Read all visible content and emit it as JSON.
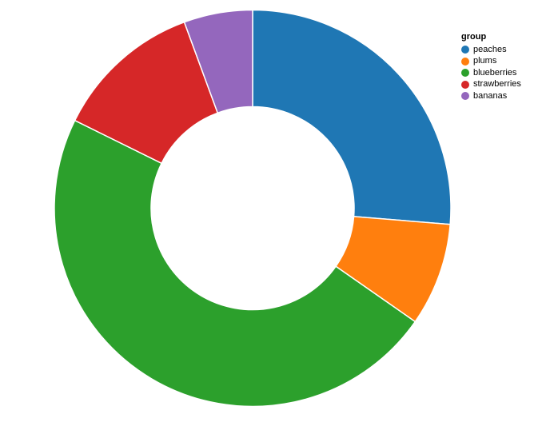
{
  "chart_data": {
    "type": "pie",
    "subtype": "donut",
    "categories": [
      "peaches",
      "plums",
      "blueberries",
      "strawberries",
      "bananas"
    ],
    "values": [
      26.3,
      8.4,
      47.6,
      12.1,
      5.6
    ],
    "values_unit": "percent_of_total",
    "colors": [
      "#1f77b4",
      "#ff7f0e",
      "#2ca02c",
      "#d62728",
      "#9467bd"
    ],
    "title": "",
    "legend_title": "group",
    "legend_position": "top-right",
    "start_angle": "12-o-clock",
    "direction": "clockwise",
    "inner_radius_ratio": 0.51,
    "background": "#ffffff",
    "divider_color": "#ffffff"
  },
  "legend": {
    "title": "group",
    "items": [
      {
        "label": "peaches",
        "color": "#1f77b4"
      },
      {
        "label": "plums",
        "color": "#ff7f0e"
      },
      {
        "label": "blueberries",
        "color": "#2ca02c"
      },
      {
        "label": "strawberries",
        "color": "#d62728"
      },
      {
        "label": "bananas",
        "color": "#9467bd"
      }
    ]
  }
}
